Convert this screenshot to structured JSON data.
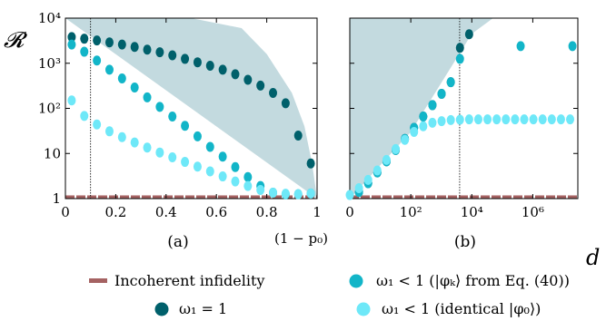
{
  "colors": {
    "dark": "#00606b",
    "mid": "#12b5c8",
    "light": "#6ee8f8",
    "shade": "#c3dadf",
    "incoherent": "#a56262"
  },
  "ylabel": "𝓡",
  "legend": {
    "incoherent": "Incoherent infidelity",
    "dark": "ω₁ = 1",
    "mid": "ω₁ < 1 (|φₖ⟩ from Eq. (40))",
    "light": "ω₁ < 1 (identical |φ₀⟩)"
  },
  "chart_data": [
    {
      "type": "scatter",
      "caption": "(a)",
      "xlabel": "(1 − p₀)",
      "xlim": [
        0,
        1
      ],
      "ylim": [
        1,
        10000
      ],
      "yscale": "log",
      "x_ticks": [
        "0",
        "0.2",
        "0.4",
        "0.6",
        "0.8",
        "1"
      ],
      "y_ticks": [
        "1",
        "10",
        "10²",
        "10³",
        "10⁴"
      ],
      "grid": false,
      "vline_x": 0.1,
      "incoherent_level": 1.1,
      "shaded_boundary": [
        [
          0,
          10000
        ],
        [
          0.5,
          10000
        ],
        [
          0.7,
          6000
        ],
        [
          0.8,
          1600
        ],
        [
          0.9,
          220
        ],
        [
          0.95,
          40
        ],
        [
          0.98,
          6
        ],
        [
          1.0,
          1
        ]
      ],
      "series": [
        {
          "name": "ω₁ = 1",
          "color_key": "dark",
          "x": [
            0.025,
            0.075,
            0.125,
            0.175,
            0.225,
            0.275,
            0.325,
            0.375,
            0.425,
            0.475,
            0.525,
            0.575,
            0.625,
            0.675,
            0.725,
            0.775,
            0.825,
            0.875,
            0.925,
            0.975
          ],
          "y": [
            3800,
            3500,
            3200,
            2900,
            2600,
            2300,
            2000,
            1750,
            1500,
            1250,
            1050,
            880,
            720,
            570,
            430,
            320,
            220,
            130,
            25,
            6
          ]
        },
        {
          "name": "ω₁ < 1 (|φₖ⟩ from Eq. (40))",
          "color_key": "mid",
          "x": [
            0.025,
            0.075,
            0.125,
            0.175,
            0.225,
            0.275,
            0.325,
            0.375,
            0.425,
            0.475,
            0.525,
            0.575,
            0.625,
            0.675,
            0.725,
            0.775,
            0.825,
            0.875,
            0.925,
            0.975
          ],
          "y": [
            2600,
            1800,
            1150,
            720,
            460,
            290,
            175,
            108,
            66,
            41,
            24,
            14,
            8.5,
            5,
            3,
            1.9,
            1.35,
            1.25,
            1.25,
            1.3
          ]
        },
        {
          "name": "ω₁ < 1 (identical |φ₀⟩)",
          "color_key": "light",
          "x": [
            0.025,
            0.075,
            0.125,
            0.175,
            0.225,
            0.275,
            0.325,
            0.375,
            0.425,
            0.475,
            0.525,
            0.575,
            0.625,
            0.675,
            0.725,
            0.775,
            0.825,
            0.875,
            0.925,
            0.975
          ],
          "y": [
            150,
            68,
            44,
            31,
            23,
            17.5,
            13.5,
            10.5,
            8.2,
            6.5,
            5.1,
            4,
            3.1,
            2.4,
            1.9,
            1.55,
            1.35,
            1.28,
            1.25,
            1.3
          ]
        }
      ]
    },
    {
      "type": "scatter",
      "caption": "(b)",
      "xlabel": "d",
      "xscale": "log",
      "xlim": [
        1,
        30000000
      ],
      "ylim": [
        1,
        10000
      ],
      "yscale": "log",
      "x_ticks": [
        "0",
        "10²",
        "10⁴",
        "10⁶"
      ],
      "grid": false,
      "vline_x": 4000,
      "incoherent_level": 1.1,
      "shaded_boundary": [
        [
          1,
          1
        ],
        [
          100,
          30
        ],
        [
          10000,
          4500
        ],
        [
          50000,
          10000
        ],
        [
          1,
          10000
        ]
      ],
      "series": [
        {
          "name": "ω₁ = 1",
          "color_key": "dark",
          "x": [
            2,
            4,
            8,
            16,
            32,
            64,
            128,
            256,
            512,
            1024,
            2048,
            4096,
            8192
          ],
          "y": [
            1.4,
            2.2,
            3.8,
            6.7,
            12,
            21,
            37,
            66,
            118,
            210,
            380,
            2200,
            4400
          ]
        },
        {
          "name": "ω₁ < 1 (|φₖ⟩ from Eq. (40))",
          "color_key": "mid",
          "x": [
            2,
            4,
            8,
            16,
            32,
            64,
            128,
            256,
            512,
            1024,
            2048,
            4096,
            400000,
            20000000
          ],
          "y": [
            1.4,
            2.2,
            3.8,
            6.7,
            12,
            21,
            37,
            66,
            118,
            210,
            380,
            1250,
            2400,
            2400
          ]
        },
        {
          "name": "ω₁ < 1 (identical |φ₀⟩)",
          "color_key": "light",
          "x": [
            1,
            2,
            4,
            8,
            16,
            32,
            64,
            128,
            256,
            512,
            1024,
            2048,
            4096,
            8192,
            16384,
            32768,
            65536,
            131072,
            262144,
            524288,
            1048576,
            2097152,
            4194304,
            8388608,
            16777216
          ],
          "y": [
            1.2,
            1.7,
            2.6,
            4.2,
            7.2,
            12.5,
            20,
            30,
            40,
            48,
            52,
            55,
            56,
            57,
            57,
            57,
            57,
            57,
            57,
            57,
            57,
            57,
            57,
            57,
            57
          ]
        }
      ]
    }
  ]
}
